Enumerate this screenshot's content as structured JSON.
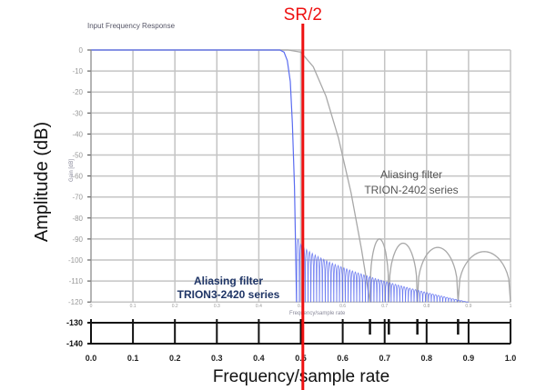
{
  "chart_data": {
    "type": "line",
    "title": "Input Frequency Response",
    "xlabel": "Frequency/sample rate",
    "ylabel": "Amplitude (dB)",
    "inner_xlabel": "Frequency/sample rate",
    "inner_ylabel": "Gain [dB]",
    "xlim": [
      0,
      1.0
    ],
    "ylim": [
      -140,
      0
    ],
    "inner_ylim": [
      -120,
      0
    ],
    "grid": true,
    "x_ticks": [
      "0.0",
      "0.1",
      "0.2",
      "0.3",
      "0.4",
      "0.5",
      "0.6",
      "0.7",
      "0.8",
      "0.9",
      "1.0"
    ],
    "inner_x_ticks": [
      "0",
      "0.1",
      "0.2",
      "0.3",
      "0.4",
      "0.5",
      "0.6",
      "0.7",
      "0.8",
      "0.9",
      "1"
    ],
    "y_ticks": [
      "0",
      "-10",
      "-20",
      "-30",
      "-40",
      "-50",
      "-60",
      "-70",
      "-80",
      "-90",
      "-100",
      "-110",
      "-120",
      "-130",
      "-140"
    ],
    "marker": {
      "label": "SR/2",
      "x": 0.505,
      "color": "#ee1111"
    },
    "extra_ticks_x": [
      0.665,
      0.71,
      0.778,
      0.875
    ],
    "series": [
      {
        "name": "TRION-2402 series",
        "color": "#a8a8a8",
        "passband": [
          [
            0,
            0
          ],
          [
            0.47,
            0
          ],
          [
            0.5,
            -1
          ],
          [
            0.53,
            -8
          ],
          [
            0.56,
            -22
          ],
          [
            0.59,
            -42
          ],
          [
            0.62,
            -68
          ],
          [
            0.645,
            -95
          ],
          [
            0.665,
            -120
          ]
        ],
        "lobes": [
          [
            0.665,
            0.71,
            -90
          ],
          [
            0.71,
            0.778,
            -92
          ],
          [
            0.778,
            0.875,
            -94
          ],
          [
            0.875,
            1.0,
            -96
          ]
        ]
      },
      {
        "name": "TRION3-2420 series",
        "color": "#5a6cf0",
        "passband": [
          [
            0,
            0
          ],
          [
            0.45,
            0
          ],
          [
            0.46,
            -1
          ],
          [
            0.468,
            -5
          ],
          [
            0.475,
            -15
          ],
          [
            0.48,
            -35
          ],
          [
            0.485,
            -65
          ],
          [
            0.49,
            -120
          ]
        ],
        "stopband": {
          "start": 0.49,
          "end": 0.9,
          "lobes": 60,
          "peak_start": -90,
          "peak_end": -120
        }
      }
    ],
    "annotations": [
      {
        "lines": [
          "Aliasing filter",
          "TRION-2402 series"
        ],
        "color": "#555555"
      },
      {
        "lines": [
          "Aliasing filter",
          "TRION3-2420 series"
        ],
        "color": "#1f3566"
      }
    ]
  }
}
